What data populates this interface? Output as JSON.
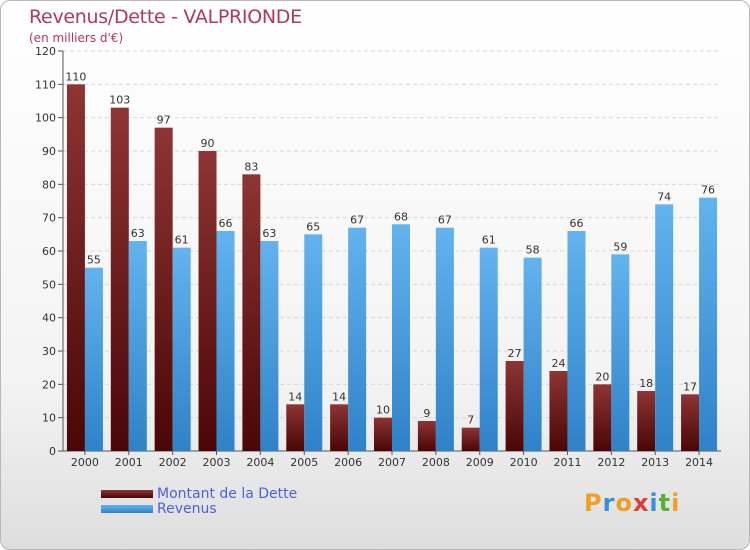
{
  "header": {
    "title": "Revenus/Dette - VALPRIONDE",
    "subtitle": "(en milliers d'€)"
  },
  "colors": {
    "debt_top": "#8e3434",
    "debt_bottom": "#4a0606",
    "revenue_top": "#62b3ee",
    "revenue_bottom": "#2f82c8",
    "axis_text": "#333333",
    "grid": "#d8d8d8"
  },
  "chart_data": {
    "type": "bar",
    "title": "Revenus/Dette - VALPRIONDE",
    "subtitle": "(en milliers d'€)",
    "categories": [
      "2000",
      "2001",
      "2002",
      "2003",
      "2004",
      "2005",
      "2006",
      "2007",
      "2008",
      "2009",
      "2010",
      "2011",
      "2012",
      "2013",
      "2014"
    ],
    "series": [
      {
        "name": "Montant de la Dette",
        "values": [
          110,
          103,
          97,
          90,
          83,
          14,
          14,
          10,
          9,
          7,
          27,
          24,
          20,
          18,
          17
        ]
      },
      {
        "name": "Revenus",
        "values": [
          55,
          63,
          61,
          66,
          63,
          65,
          67,
          68,
          67,
          61,
          58,
          66,
          59,
          74,
          76
        ]
      }
    ],
    "ylim": [
      0,
      120
    ],
    "yticks": [
      0,
      10,
      20,
      30,
      40,
      50,
      60,
      70,
      80,
      90,
      100,
      110,
      120
    ],
    "grid": true,
    "legend_position": "bottom-left"
  },
  "legend": {
    "items": [
      {
        "label": "Montant de la Dette"
      },
      {
        "label": "Revenus"
      }
    ]
  },
  "logo": {
    "letters": [
      {
        "ch": "P",
        "color": "#f0a020"
      },
      {
        "ch": "r",
        "color": "#3a8fd8"
      },
      {
        "ch": "o",
        "color": "#f0a020"
      },
      {
        "ch": "x",
        "color": "#e03a3a"
      },
      {
        "ch": "i",
        "color": "#3a8fd8"
      },
      {
        "ch": "t",
        "color": "#58b030"
      },
      {
        "ch": "i",
        "color": "#f0a020"
      }
    ]
  }
}
